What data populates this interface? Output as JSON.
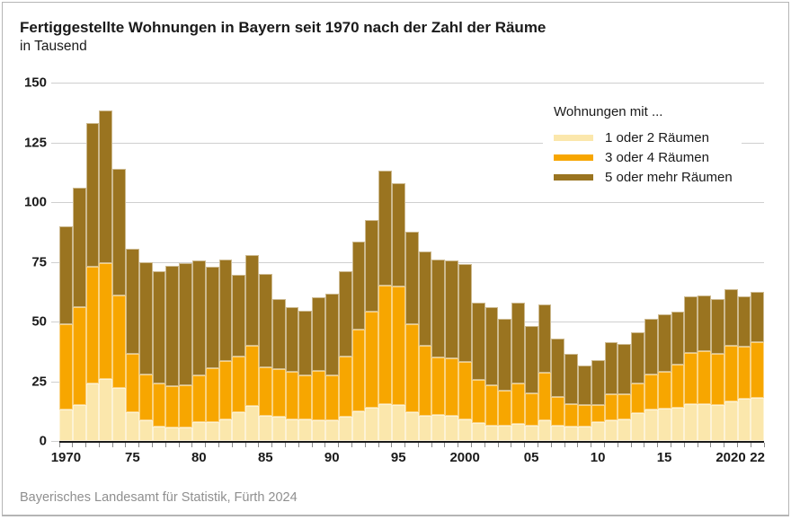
{
  "header": {
    "title": "Fertiggestellte Wohnungen in Bayern seit 1970 nach der Zahl der Räume",
    "subtitle": "in Tausend"
  },
  "legend": {
    "title": "Wohnungen mit ...",
    "items": [
      {
        "label": "1 oder 2 Räumen",
        "color": "#fbe7ac"
      },
      {
        "label": "3 oder 4 Räumen",
        "color": "#f7a600"
      },
      {
        "label": "5 oder mehr Räumen",
        "color": "#9a7420"
      }
    ]
  },
  "footer": {
    "source": "Bayerisches Landesamt für Statistik, Fürth 2024"
  },
  "colors": {
    "rooms_1_2": "#fbe7ac",
    "rooms_3_4": "#f7a600",
    "rooms_5_plus": "#9a7420",
    "gridline": "#cfcfcf",
    "axis": "#1a1a1a",
    "frame": "#b5b5b5",
    "source_text": "#8f8f8f"
  },
  "chart_data": {
    "type": "bar",
    "stacked": true,
    "title": "Fertiggestellte Wohnungen in Bayern seit 1970 nach der Zahl der Räume",
    "ylabel": "in Tausend",
    "ylim": [
      0,
      150
    ],
    "yticks": [
      0,
      25,
      50,
      75,
      100,
      125,
      150
    ],
    "grid": true,
    "legend_position": "top-right",
    "years": [
      1970,
      1971,
      1972,
      1973,
      1974,
      1975,
      1976,
      1977,
      1978,
      1979,
      1980,
      1981,
      1982,
      1983,
      1984,
      1985,
      1986,
      1987,
      1988,
      1989,
      1990,
      1991,
      1992,
      1993,
      1994,
      1995,
      1996,
      1997,
      1998,
      1999,
      2000,
      2001,
      2002,
      2003,
      2004,
      2005,
      2006,
      2007,
      2008,
      2009,
      2010,
      2011,
      2012,
      2013,
      2014,
      2015,
      2016,
      2017,
      2018,
      2019,
      2020,
      2021,
      2022
    ],
    "xticks": [
      {
        "year": 1970,
        "label": "1970"
      },
      {
        "year": 1975,
        "label": "75"
      },
      {
        "year": 1980,
        "label": "80"
      },
      {
        "year": 1985,
        "label": "85"
      },
      {
        "year": 1990,
        "label": "90"
      },
      {
        "year": 1995,
        "label": "95"
      },
      {
        "year": 2000,
        "label": "2000"
      },
      {
        "year": 2005,
        "label": "05"
      },
      {
        "year": 2010,
        "label": "10"
      },
      {
        "year": 2015,
        "label": "15"
      },
      {
        "year": 2020,
        "label": "2020"
      },
      {
        "year": 2022,
        "label": "22"
      }
    ],
    "series": [
      {
        "name": "1 oder 2 Räumen",
        "color": "#fbe7ac",
        "values": [
          13,
          15,
          24,
          26,
          22,
          12,
          8.5,
          6,
          5.5,
          5.5,
          8,
          8,
          9,
          12,
          14.5,
          10.5,
          10,
          9,
          9,
          8.5,
          8.5,
          10,
          12.5,
          14,
          15.5,
          15,
          12,
          10.5,
          11,
          10.5,
          9,
          7.5,
          6.5,
          6.5,
          7,
          6.5,
          8.5,
          6.5,
          6,
          6,
          8,
          8.5,
          9,
          11.5,
          13,
          13.5,
          14,
          15.5,
          15.5,
          15,
          16.5,
          17.5,
          18
        ]
      },
      {
        "name": "3 oder 4 Räumen",
        "color": "#f7a600",
        "values": [
          36,
          41,
          49,
          48.5,
          39,
          24.5,
          19.5,
          18,
          17.5,
          18,
          19.5,
          22.5,
          24.5,
          23.5,
          25.5,
          20.5,
          20,
          20,
          18.5,
          21,
          19,
          25.5,
          34,
          40,
          49.5,
          49.5,
          37,
          29.5,
          24,
          24,
          24,
          18,
          17,
          14.5,
          17,
          13.5,
          20,
          12,
          9.5,
          9,
          7,
          11,
          10.5,
          12.5,
          15,
          15.5,
          18,
          21.5,
          22,
          21.5,
          23.5,
          22,
          23.5
        ]
      },
      {
        "name": "5 oder mehr Räumen",
        "color": "#9a7420",
        "values": [
          41,
          50,
          60,
          64,
          53,
          44,
          47,
          47,
          50.5,
          51,
          48,
          42.5,
          42.5,
          34,
          38,
          39,
          29.5,
          27,
          27,
          30.5,
          34,
          35.5,
          37,
          38.5,
          48,
          43.5,
          38.5,
          39.5,
          41,
          41,
          41,
          32.5,
          32.5,
          30,
          34,
          28,
          28.5,
          24.5,
          21,
          16.5,
          19,
          22,
          21,
          21.5,
          23,
          24,
          22,
          23.5,
          23.5,
          23,
          23.5,
          21,
          21
        ]
      }
    ]
  }
}
